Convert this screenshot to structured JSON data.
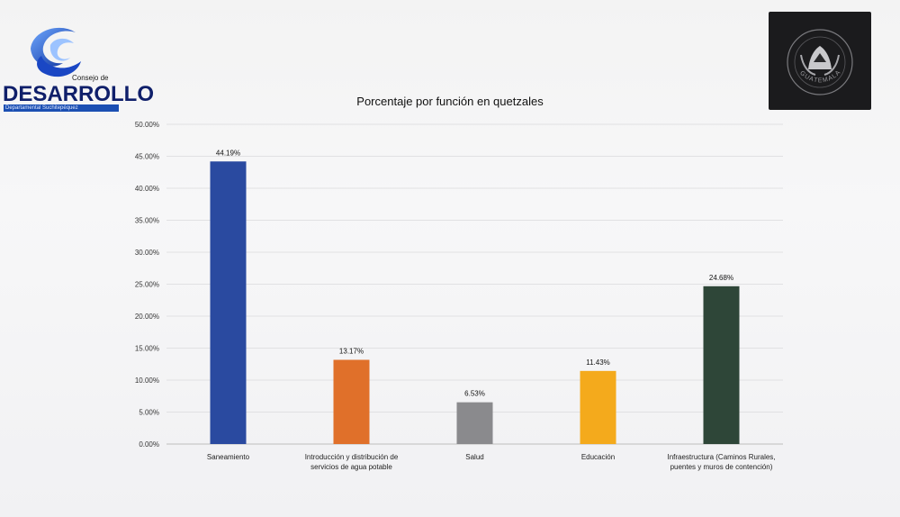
{
  "logo_left": {
    "tagline": "Consejo de",
    "name": "DESARROLLO",
    "subtitle": "Departamental Suchitepéquez",
    "brand_color": "#1b4fb3"
  },
  "logo_right": {
    "seal_text": "GUATEMALA",
    "icon": "coat-of-arms-icon"
  },
  "chart_data": {
    "type": "bar",
    "title": "Porcentaje por función en quetzales",
    "xlabel": "",
    "ylabel": "",
    "ylim": [
      0,
      50
    ],
    "yticks": [
      "0.00%",
      "5.00%",
      "10.00%",
      "15.00%",
      "20.00%",
      "25.00%",
      "30.00%",
      "35.00%",
      "40.00%",
      "45.00%",
      "50.00%"
    ],
    "grid": true,
    "legend": "none",
    "categories": [
      [
        "Saneamiento"
      ],
      [
        "Introducción y distribución de",
        "servicios de agua potable"
      ],
      [
        "Salud"
      ],
      [
        "Educación"
      ],
      [
        "Infraestructura (Caminos Rurales,",
        "puentes y muros de contención)"
      ]
    ],
    "values": [
      44.19,
      13.17,
      6.53,
      11.43,
      24.68
    ],
    "data_labels": [
      "44.19%",
      "13.17%",
      "6.53%",
      "11.43%",
      "24.68%"
    ],
    "colors": [
      "#2a4aa0",
      "#e0702a",
      "#8a8a8d",
      "#f4aa1c",
      "#2e4638"
    ]
  }
}
